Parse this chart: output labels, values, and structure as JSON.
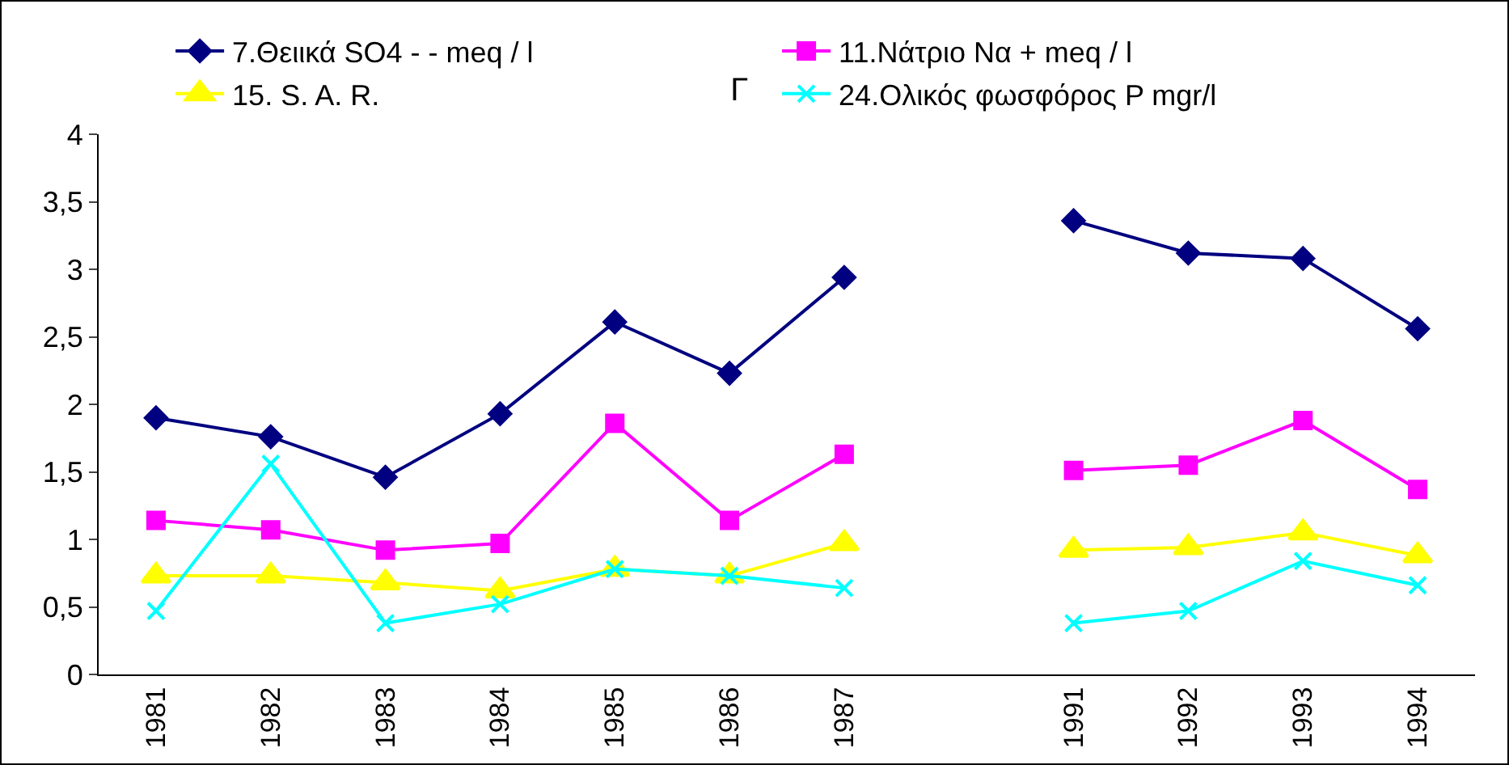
{
  "chart_data": {
    "type": "line",
    "title": "Γ",
    "categories": [
      "1981",
      "1982",
      "1983",
      "1984",
      "1985",
      "1986",
      "1987",
      null,
      "1991",
      "1992",
      "1993",
      "1994"
    ],
    "series": [
      {
        "name": "7.Θειικά SO4 - - meq / l",
        "color": "#000080",
        "marker": "diamond",
        "values": [
          1.9,
          1.76,
          1.46,
          1.93,
          2.61,
          2.23,
          2.94,
          null,
          3.36,
          3.12,
          3.08,
          2.56
        ]
      },
      {
        "name": "11.Νάτριο Να + meq / l",
        "color": "#ff00ff",
        "marker": "square",
        "values": [
          1.14,
          1.07,
          0.92,
          0.97,
          1.86,
          1.14,
          1.63,
          null,
          1.51,
          1.55,
          1.88,
          1.37
        ]
      },
      {
        "name": "15. S. A. R.",
        "color": "#ffff00",
        "marker": "triangle",
        "values": [
          0.73,
          0.73,
          0.68,
          0.62,
          0.78,
          0.73,
          0.97,
          null,
          0.92,
          0.94,
          1.05,
          0.88
        ]
      },
      {
        "name": "24.Ολικός φωσφόρος P mgr/l",
        "color": "#00ffff",
        "marker": "cross",
        "values": [
          0.47,
          1.56,
          0.38,
          0.52,
          0.78,
          0.73,
          0.64,
          null,
          0.38,
          0.47,
          0.84,
          0.66
        ]
      }
    ],
    "ylim": [
      0,
      4
    ],
    "yticks": [
      0,
      {
        "value": 0.5,
        "label": "0,5"
      },
      1,
      {
        "value": 1.5,
        "label": "1,5"
      },
      2,
      {
        "value": 2.5,
        "label": "2,5"
      },
      3,
      {
        "value": 3.5,
        "label": "3,5"
      },
      4
    ],
    "grid": false,
    "legend": "top",
    "line_style": "solid"
  }
}
